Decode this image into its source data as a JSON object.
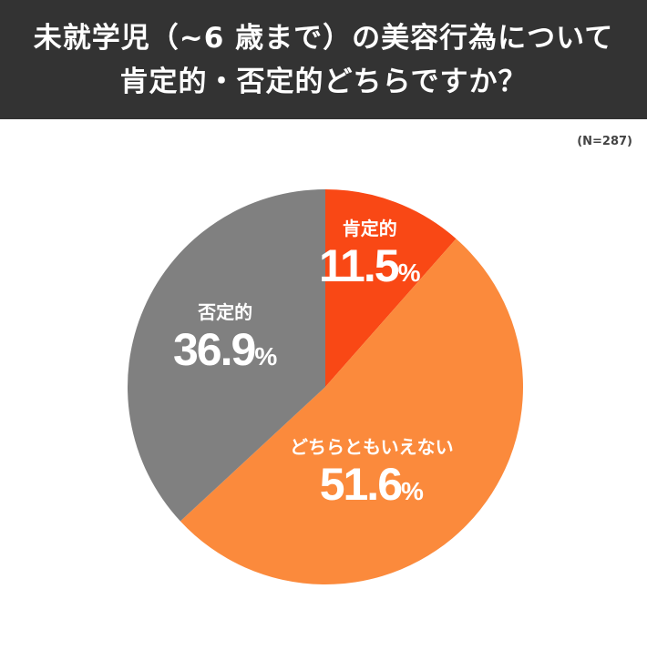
{
  "header": {
    "title_line1": "未就学児（~6 歳まで）の美容行為について",
    "title_line2": "肯定的・否定的どちらですか？"
  },
  "sample_size": "(N=287)",
  "colors": {
    "header_bg": "#333333",
    "positive": "#F94815",
    "neutral": "#FB8A3C",
    "negative": "#808080"
  },
  "chart_data": {
    "type": "pie",
    "title": "未就学児（~6 歳まで）の美容行為について肯定的・否定的どちらですか？",
    "note": "(N=287)",
    "categories": [
      "肯定的",
      "どちらともいえない",
      "否定的"
    ],
    "values": [
      11.5,
      51.6,
      36.9
    ],
    "unit": "%",
    "colors": [
      "#F94815",
      "#FB8A3C",
      "#808080"
    ],
    "start_angle": "12 o'clock, clockwise",
    "legend": "none (labels inside slices)"
  },
  "labels": [
    {
      "category": "肯定的",
      "value": "11.5",
      "unit": "%"
    },
    {
      "category": "どちらともいえない",
      "value": "51.6",
      "unit": "%"
    },
    {
      "category": "否定的",
      "value": "36.9",
      "unit": "%"
    }
  ]
}
